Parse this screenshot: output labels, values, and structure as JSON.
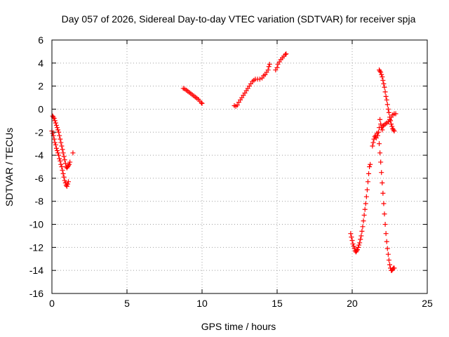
{
  "chart_data": {
    "type": "scatter",
    "title": "Day 057 of 2026, Sidereal Day-to-day VTEC variation (SDTVAR) for receiver spja",
    "xlabel": "GPS time / hours",
    "ylabel": "SDTVAR / TECUs",
    "xlim": [
      0,
      25
    ],
    "ylim": [
      -16,
      6
    ],
    "xticks": [
      0,
      5,
      10,
      15,
      20,
      25
    ],
    "yticks": [
      -16,
      -14,
      -12,
      -10,
      -8,
      -6,
      -4,
      -2,
      0,
      2,
      4,
      6
    ],
    "grid": true,
    "marker": "plus",
    "color": "#ff0000",
    "series": [
      {
        "points": [
          [
            0.0,
            -1.9
          ],
          [
            0.05,
            -2.1
          ],
          [
            0.1,
            -2.3
          ],
          [
            0.15,
            -2.6
          ],
          [
            0.2,
            -2.9
          ],
          [
            0.25,
            -3.1
          ],
          [
            0.3,
            -3.4
          ],
          [
            0.35,
            -3.6
          ],
          [
            0.4,
            -3.8
          ],
          [
            0.45,
            -4.0
          ],
          [
            0.5,
            -4.3
          ],
          [
            0.55,
            -4.5
          ],
          [
            0.6,
            -4.8
          ],
          [
            0.65,
            -5.0
          ],
          [
            0.7,
            -5.3
          ],
          [
            0.75,
            -5.6
          ],
          [
            0.8,
            -5.9
          ],
          [
            0.85,
            -6.2
          ],
          [
            0.9,
            -6.4
          ],
          [
            0.95,
            -6.6
          ],
          [
            1.0,
            -6.7
          ],
          [
            1.05,
            -6.5
          ],
          [
            1.1,
            -6.3
          ],
          [
            0.05,
            -0.6
          ],
          [
            0.1,
            -0.7
          ],
          [
            0.15,
            -0.8
          ],
          [
            0.2,
            -1.0
          ],
          [
            0.25,
            -1.2
          ],
          [
            0.3,
            -1.4
          ],
          [
            0.35,
            -1.6
          ],
          [
            0.4,
            -1.8
          ],
          [
            0.45,
            -2.0
          ],
          [
            0.5,
            -2.3
          ],
          [
            0.55,
            -2.6
          ],
          [
            0.6,
            -2.9
          ],
          [
            0.65,
            -3.2
          ],
          [
            0.7,
            -3.5
          ],
          [
            0.75,
            -3.8
          ],
          [
            0.8,
            -4.1
          ],
          [
            0.85,
            -4.4
          ],
          [
            0.9,
            -4.7
          ],
          [
            0.95,
            -5.0
          ],
          [
            1.0,
            -5.1
          ],
          [
            1.05,
            -5.0
          ],
          [
            1.1,
            -4.9
          ],
          [
            1.15,
            -4.8
          ],
          [
            1.2,
            -4.6
          ],
          [
            1.4,
            -3.8
          ]
        ]
      },
      {
        "points": [
          [
            8.75,
            1.8
          ],
          [
            8.85,
            1.75
          ],
          [
            8.95,
            1.65
          ],
          [
            9.05,
            1.55
          ],
          [
            9.15,
            1.45
          ],
          [
            9.25,
            1.35
          ],
          [
            9.35,
            1.25
          ],
          [
            9.45,
            1.15
          ],
          [
            9.55,
            1.05
          ],
          [
            9.65,
            0.95
          ],
          [
            9.75,
            0.85
          ],
          [
            9.85,
            0.7
          ],
          [
            9.95,
            0.55
          ],
          [
            10.0,
            0.5
          ]
        ]
      },
      {
        "points": [
          [
            12.15,
            0.3
          ],
          [
            12.25,
            0.25
          ],
          [
            12.35,
            0.35
          ],
          [
            12.45,
            0.6
          ],
          [
            12.55,
            0.8
          ],
          [
            12.65,
            1.0
          ],
          [
            12.75,
            1.2
          ],
          [
            12.85,
            1.4
          ],
          [
            12.95,
            1.6
          ],
          [
            13.05,
            1.8
          ],
          [
            13.15,
            2.0
          ],
          [
            13.25,
            2.2
          ],
          [
            13.35,
            2.4
          ],
          [
            13.45,
            2.5
          ],
          [
            13.55,
            2.6
          ],
          [
            13.7,
            2.6
          ],
          [
            13.85,
            2.6
          ],
          [
            14.0,
            2.7
          ],
          [
            14.1,
            2.9
          ],
          [
            14.2,
            3.0
          ],
          [
            14.3,
            3.2
          ],
          [
            14.4,
            3.4
          ],
          [
            14.45,
            3.7
          ],
          [
            14.5,
            3.9
          ],
          [
            14.9,
            3.4
          ],
          [
            15.0,
            3.6
          ],
          [
            15.05,
            3.9
          ],
          [
            15.15,
            4.1
          ],
          [
            15.25,
            4.3
          ],
          [
            15.35,
            4.45
          ],
          [
            15.45,
            4.6
          ],
          [
            15.55,
            4.75
          ],
          [
            15.6,
            4.8
          ]
        ]
      },
      {
        "points": [
          [
            19.9,
            -10.8
          ],
          [
            19.95,
            -11.1
          ],
          [
            20.0,
            -11.4
          ],
          [
            20.05,
            -11.7
          ],
          [
            20.1,
            -11.9
          ],
          [
            20.15,
            -12.1
          ],
          [
            20.2,
            -12.3
          ],
          [
            20.25,
            -12.4
          ],
          [
            20.3,
            -12.3
          ],
          [
            20.35,
            -12.2
          ],
          [
            20.4,
            -12.0
          ],
          [
            20.45,
            -11.8
          ],
          [
            20.5,
            -11.6
          ],
          [
            20.55,
            -11.3
          ],
          [
            20.6,
            -11.0
          ],
          [
            20.65,
            -10.6
          ],
          [
            20.7,
            -10.2
          ],
          [
            20.75,
            -9.7
          ],
          [
            20.8,
            -9.2
          ],
          [
            20.85,
            -8.7
          ],
          [
            20.9,
            -8.2
          ],
          [
            20.95,
            -7.6
          ],
          [
            21.0,
            -7.0
          ],
          [
            21.05,
            -6.3
          ],
          [
            21.1,
            -5.6
          ],
          [
            21.15,
            -5.0
          ],
          [
            21.2,
            -4.8
          ]
        ]
      },
      {
        "points": [
          [
            21.35,
            -3.2
          ],
          [
            21.4,
            -2.9
          ],
          [
            21.45,
            -2.6
          ],
          [
            21.5,
            -2.4
          ],
          [
            21.55,
            -2.3
          ],
          [
            21.6,
            -2.5
          ],
          [
            21.65,
            -2.1
          ],
          [
            21.7,
            -2.3
          ],
          [
            21.75,
            -2.0
          ],
          [
            21.8,
            -1.6
          ],
          [
            21.85,
            -0.9
          ],
          [
            21.9,
            -1.3
          ],
          [
            21.95,
            -1.6
          ],
          [
            22.0,
            -1.8
          ],
          [
            22.05,
            -1.5
          ],
          [
            22.1,
            -1.4
          ],
          [
            22.2,
            -1.3
          ],
          [
            22.3,
            -1.2
          ],
          [
            22.4,
            -1.1
          ],
          [
            22.5,
            -0.9
          ],
          [
            22.6,
            -0.7
          ],
          [
            22.7,
            -0.5
          ],
          [
            22.8,
            -0.4
          ],
          [
            22.9,
            -0.4
          ],
          [
            21.8,
            3.4
          ],
          [
            21.85,
            3.3
          ],
          [
            21.9,
            3.2
          ],
          [
            21.95,
            3.0
          ],
          [
            22.0,
            2.8
          ],
          [
            22.05,
            2.5
          ],
          [
            22.1,
            2.2
          ],
          [
            22.15,
            1.9
          ],
          [
            22.2,
            1.5
          ],
          [
            22.25,
            1.1
          ],
          [
            22.3,
            0.8
          ],
          [
            22.35,
            0.4
          ],
          [
            22.4,
            0.0
          ],
          [
            22.45,
            -0.3
          ],
          [
            22.5,
            -0.7
          ],
          [
            22.55,
            -1.0
          ],
          [
            22.6,
            -1.3
          ],
          [
            22.65,
            -1.5
          ],
          [
            22.7,
            -1.7
          ],
          [
            22.75,
            -1.8
          ],
          [
            22.8,
            -1.9
          ],
          [
            21.8,
            -3.0
          ],
          [
            21.85,
            -3.8
          ],
          [
            21.9,
            -4.6
          ],
          [
            21.95,
            -5.5
          ],
          [
            22.0,
            -6.4
          ],
          [
            22.05,
            -7.3
          ],
          [
            22.1,
            -8.2
          ],
          [
            22.15,
            -9.1
          ],
          [
            22.2,
            -10.0
          ],
          [
            22.25,
            -10.8
          ],
          [
            22.3,
            -11.5
          ],
          [
            22.35,
            -12.1
          ],
          [
            22.4,
            -12.6
          ],
          [
            22.45,
            -13.1
          ],
          [
            22.5,
            -13.5
          ],
          [
            22.55,
            -13.8
          ],
          [
            22.6,
            -14.0
          ],
          [
            22.65,
            -14.0
          ],
          [
            22.7,
            -13.9
          ],
          [
            22.75,
            -13.8
          ],
          [
            22.8,
            -13.8
          ]
        ]
      }
    ]
  }
}
